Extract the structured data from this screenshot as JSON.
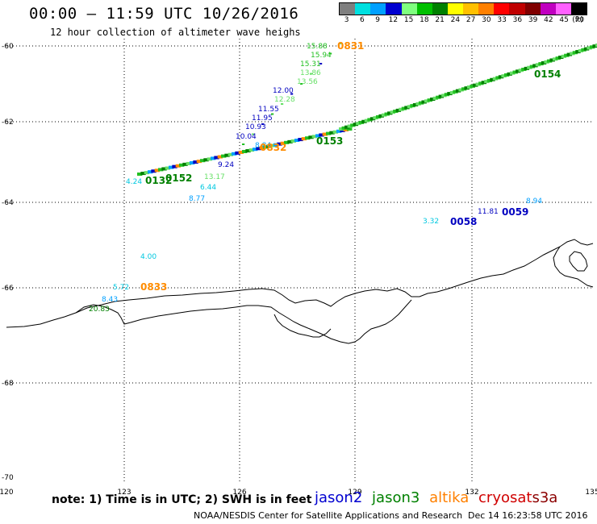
{
  "header": {
    "title": "00:00 – 11:59 UTC 10/26/2016",
    "subtitle": "12 hour collection of altimeter wave heighs"
  },
  "legend": {
    "unit": "(ft)",
    "levels": [
      "3",
      "6",
      "9",
      "12",
      "15",
      "18",
      "21",
      "24",
      "27",
      "30",
      "33",
      "36",
      "39",
      "42",
      "45",
      "70"
    ],
    "colors": [
      "#7f7f7f",
      "#00e0e0",
      "#00a0ff",
      "#0000d0",
      "#7fff7f",
      "#00c000",
      "#008000",
      "#ffff00",
      "#ffc000",
      "#ff8000",
      "#ff0000",
      "#c00000",
      "#800000",
      "#c000c0",
      "#ff60ff",
      "#000000"
    ]
  },
  "axes": {
    "lat_ticks": [
      "-60",
      "-62",
      "-64",
      "-66",
      "-68",
      "-70"
    ],
    "lon_ticks": [
      "120",
      "123",
      "126",
      "129",
      "132",
      "135"
    ]
  },
  "observations": [
    {
      "text": "15.88",
      "color": "#22c022",
      "kind": "swh"
    },
    {
      "text": "0831",
      "color": "#ff8c00",
      "kind": "time"
    },
    {
      "text": "15.94",
      "color": "#22c022",
      "kind": "swh"
    },
    {
      "text": "15.31",
      "color": "#22c022",
      "kind": "swh"
    },
    {
      "text": "13.86",
      "color": "#66e066",
      "kind": "swh"
    },
    {
      "text": "13.56",
      "color": "#66e066",
      "kind": "swh"
    },
    {
      "text": "12.00",
      "color": "#0000c0",
      "kind": "swh"
    },
    {
      "text": "12.28",
      "color": "#66e066",
      "kind": "swh"
    },
    {
      "text": "11.55",
      "color": "#0000c0",
      "kind": "swh"
    },
    {
      "text": "11.95",
      "color": "#0000c0",
      "kind": "swh"
    },
    {
      "text": "10.93",
      "color": "#0000c0",
      "kind": "swh"
    },
    {
      "text": "10.04",
      "color": "#0000c0",
      "kind": "swh"
    },
    {
      "text": "8.84",
      "color": "#00a0ff",
      "kind": "swh"
    },
    {
      "text": "9.24",
      "color": "#0000c0",
      "kind": "swh"
    },
    {
      "text": "0153",
      "color": "#008000",
      "kind": "time"
    },
    {
      "text": "0154",
      "color": "#008000",
      "kind": "time"
    },
    {
      "text": "0152",
      "color": "#008000",
      "kind": "time"
    },
    {
      "text": "0132",
      "color": "#008000",
      "kind": "time"
    },
    {
      "text": "0832",
      "color": "#ff8c00",
      "kind": "time"
    },
    {
      "text": "4.24",
      "color": "#00c8e0",
      "kind": "swh"
    },
    {
      "text": "13.17",
      "color": "#66e066",
      "kind": "swh"
    },
    {
      "text": "6.44",
      "color": "#00c8e0",
      "kind": "swh"
    },
    {
      "text": "8.77",
      "color": "#00a0ff",
      "kind": "swh"
    },
    {
      "text": "8.94",
      "color": "#00a0ff",
      "kind": "swh"
    },
    {
      "text": "11.81",
      "color": "#0000c0",
      "kind": "swh"
    },
    {
      "text": "0059",
      "color": "#0000c0",
      "kind": "time"
    },
    {
      "text": "3.32",
      "color": "#00c8e0",
      "kind": "swh"
    },
    {
      "text": "0058",
      "color": "#0000c0",
      "kind": "time"
    },
    {
      "text": "4.00",
      "color": "#00c8e0",
      "kind": "swh"
    },
    {
      "text": "5.72",
      "color": "#00c8e0",
      "kind": "swh"
    },
    {
      "text": "0833",
      "color": "#ff8c00",
      "kind": "time"
    },
    {
      "text": "8.43",
      "color": "#00a0ff",
      "kind": "swh"
    },
    {
      "text": "20.83",
      "color": "#008000",
      "kind": "swh"
    }
  ],
  "footer": {
    "note": "note: 1) Time is in UTC; 2) SWH is in feet",
    "satellites": [
      {
        "name": "jason2",
        "color": "#0000d0"
      },
      {
        "name": "jason3",
        "color": "#008000"
      },
      {
        "name": "altika",
        "color": "#ff8000"
      },
      {
        "name": "cryosat",
        "color": "#d00000"
      },
      {
        "name": "s3a",
        "color": "#8b0000"
      }
    ],
    "credit": "NOAA/NESDIS Center for Satellite Applications and Research",
    "stamp": "Dec 14 16:23:58 UTC 2016"
  }
}
